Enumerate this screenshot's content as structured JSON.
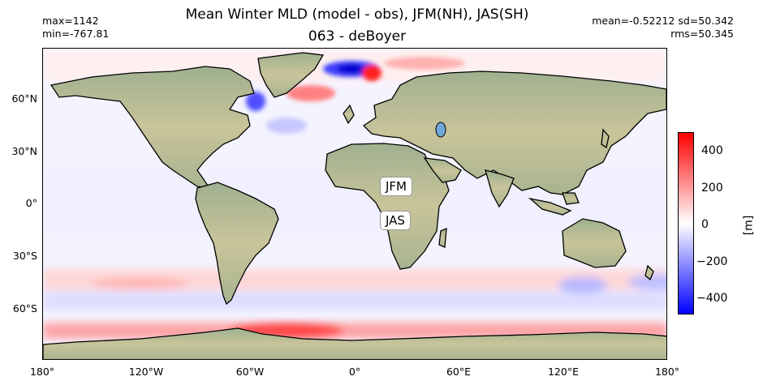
{
  "title_line1": "Mean Winter MLD (model - obs), JFM(NH), JAS(SH)",
  "title_line2": "063 - deBoyer",
  "stats_left": {
    "max": "max=1142",
    "min": "min=-767.81"
  },
  "stats_right": {
    "mean_sd": "mean=-0.52212 sd=50.342",
    "rms": "rms=50.345"
  },
  "map": {
    "lon_ticks": [
      "180°",
      "120°W",
      "60°W",
      "0°",
      "60°E",
      "120°E",
      "180°"
    ],
    "lat_ticks": [
      "60°N",
      "30°N",
      "0°",
      "30°S",
      "60°S"
    ],
    "region_labels": {
      "north": "JFM",
      "south": "JAS"
    }
  },
  "colorbar": {
    "ticks": [
      "400",
      "200",
      "0",
      "−200",
      "−400"
    ],
    "label": "[m]",
    "vmin": -500,
    "vmax": 500,
    "colormap": [
      "#0000ff",
      "#ffffff",
      "#ff0000"
    ]
  }
}
